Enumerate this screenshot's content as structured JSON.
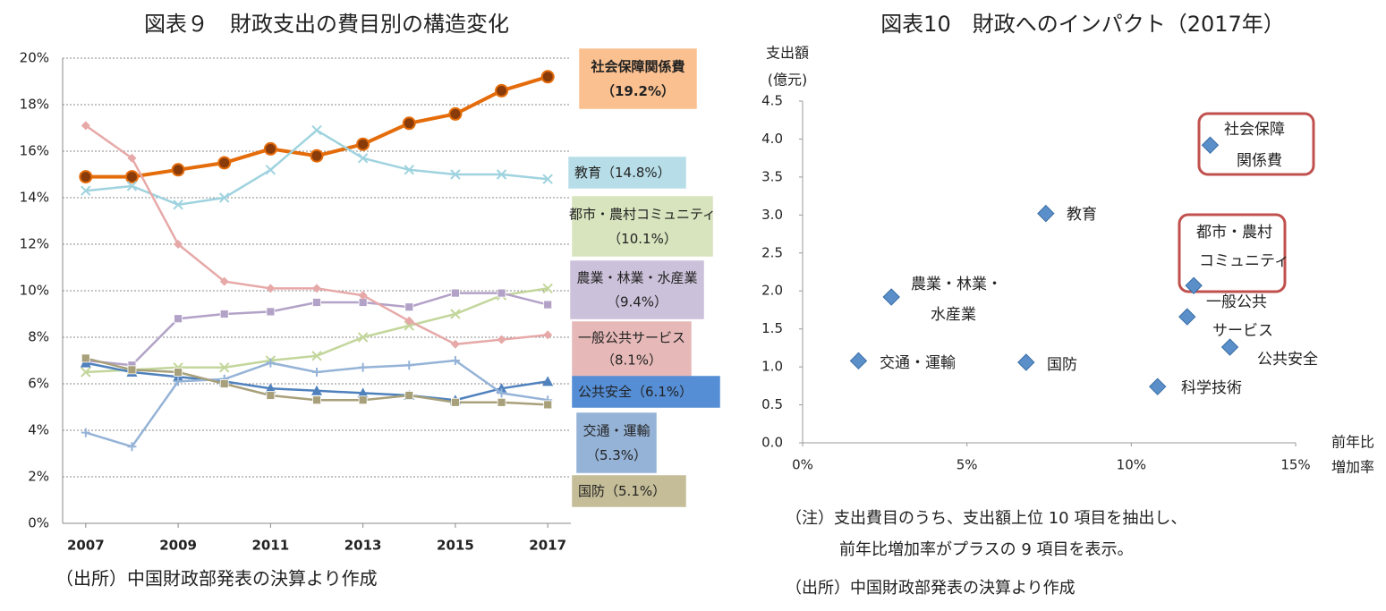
{
  "chart_data": [
    {
      "type": "line",
      "title": "図表９　財政支出の費目別の構造変化",
      "source": "（出所）中国財政部発表の決算より作成",
      "x": [
        2007,
        2008,
        2009,
        2010,
        2011,
        2012,
        2013,
        2014,
        2015,
        2016,
        2017
      ],
      "xlim": [
        2006.5,
        2017.5
      ],
      "xticks": [
        2007,
        2009,
        2011,
        2013,
        2015,
        2017
      ],
      "ylim": [
        0,
        20
      ],
      "yticks": [
        {
          "value": 0,
          "label": "0%"
        },
        {
          "value": 2,
          "label": "2%"
        },
        {
          "value": 4,
          "label": "4%"
        },
        {
          "value": 6,
          "label": "6%"
        },
        {
          "value": 8,
          "label": "8%"
        },
        {
          "value": 10,
          "label": "10%"
        },
        {
          "value": 12,
          "label": "12%"
        },
        {
          "value": 14,
          "label": "14%"
        },
        {
          "value": 16,
          "label": "16%"
        },
        {
          "value": 18,
          "label": "18%"
        },
        {
          "value": 20,
          "label": "20%"
        }
      ],
      "grid": true,
      "series": [
        {
          "name": "社会保障関係費",
          "end_label": "（19.2%）",
          "color": "#e46c0a",
          "box_color": "#fac090",
          "marker": "circle",
          "values": [
            14.9,
            14.9,
            15.2,
            15.5,
            16.1,
            15.8,
            16.3,
            17.2,
            17.6,
            18.6,
            19.2
          ]
        },
        {
          "name": "教育",
          "end_label": "（14.8%）",
          "color": "#9fd3df",
          "box_color": "#b7dee8",
          "marker": "x",
          "values": [
            14.3,
            14.5,
            13.7,
            14.0,
            15.2,
            16.9,
            15.7,
            15.2,
            15.0,
            15.0,
            14.8
          ]
        },
        {
          "name": "都市・農村コミュニティ",
          "end_label": "（10.1%）",
          "color": "#c3d69b",
          "box_color": "#d7e4bd",
          "marker": "x",
          "values": [
            6.5,
            6.6,
            6.7,
            6.7,
            7.0,
            7.2,
            8.0,
            8.5,
            9.0,
            9.8,
            10.1
          ]
        },
        {
          "name": "農業・林業・水産業",
          "end_label": "（9.4%）",
          "color": "#b3a2c7",
          "box_color": "#ccc1da",
          "marker": "square",
          "values": [
            7.0,
            6.8,
            8.8,
            9.0,
            9.1,
            9.5,
            9.5,
            9.3,
            9.9,
            9.9,
            9.4
          ]
        },
        {
          "name": "一般公共サービス",
          "end_label": "（8.1%）",
          "color": "#e6a9a8",
          "box_color": "#e6b9b8",
          "marker": "diamond",
          "values": [
            17.1,
            15.7,
            12.0,
            10.4,
            10.1,
            10.1,
            9.8,
            8.7,
            7.7,
            7.9,
            8.1
          ]
        },
        {
          "name": "公共安全",
          "end_label": "（6.1%）",
          "color": "#4f81bd",
          "box_color": "#558ed5",
          "marker": "triangle",
          "values": [
            6.9,
            6.5,
            6.3,
            6.1,
            5.8,
            5.7,
            5.6,
            5.5,
            5.3,
            5.8,
            6.1
          ]
        },
        {
          "name": "交通・運輸",
          "end_label": "（5.3%）",
          "color": "#95b3d7",
          "box_color": "#95b3d7",
          "marker": "plus",
          "values": [
            3.9,
            3.3,
            6.1,
            6.2,
            6.9,
            6.5,
            6.7,
            6.8,
            7.0,
            5.6,
            5.3
          ]
        },
        {
          "name": "国防",
          "end_label": "（5.1%）",
          "color": "#a8a07a",
          "box_color": "#c4bd97",
          "marker": "square",
          "values": [
            7.1,
            6.6,
            6.5,
            6.0,
            5.5,
            5.3,
            5.3,
            5.5,
            5.2,
            5.2,
            5.1
          ]
        }
      ]
    },
    {
      "type": "scatter",
      "title": "図表10　財政へのインパクト（2017年）",
      "ylabel": [
        "支出額",
        "(億元)"
      ],
      "xlabel": [
        "前年比",
        "増加率"
      ],
      "xlim": [
        0,
        15
      ],
      "xticks": [
        {
          "value": 0,
          "label": "0%"
        },
        {
          "value": 5,
          "label": "5%"
        },
        {
          "value": 10,
          "label": "10%"
        },
        {
          "value": 15,
          "label": "15%"
        }
      ],
      "ylim": [
        0,
        4.5
      ],
      "yticks": [
        {
          "value": 0,
          "label": "0.0"
        },
        0.5,
        {
          "value": 1,
          "label": "1.0"
        },
        1.5,
        {
          "value": 2,
          "label": "2.0"
        },
        2.5,
        {
          "value": 3,
          "label": "3.0"
        },
        3.5,
        {
          "value": 4,
          "label": "4.0"
        },
        4.5
      ],
      "color": "#5b8fc9",
      "highlight_color": "#c0504d",
      "highlight": [
        0,
        2
      ],
      "labels": [
        [
          "社会保障",
          "関係費"
        ],
        [
          "教育"
        ],
        [
          "都市・農村",
          "コミュニティ"
        ],
        [
          "農業・林業・",
          "水産業"
        ],
        [
          "一般公共",
          "サービス"
        ],
        [
          "公共安全"
        ],
        [
          "交通・運輸"
        ],
        [
          "国防"
        ],
        [
          "科学技術"
        ]
      ],
      "x": [
        12.4,
        7.4,
        11.9,
        2.7,
        11.7,
        13.0,
        1.7,
        6.8,
        10.8
      ],
      "values": [
        3.92,
        3.02,
        2.07,
        1.92,
        1.66,
        1.26,
        1.08,
        1.06,
        0.74
      ],
      "notes": [
        "（注）支出費目のうち、支出額上位 10 項目を抽出し、",
        "前年比増加率がプラスの 9 項目を表示。"
      ],
      "source": "（出所）中国財政部発表の決算より作成"
    }
  ]
}
